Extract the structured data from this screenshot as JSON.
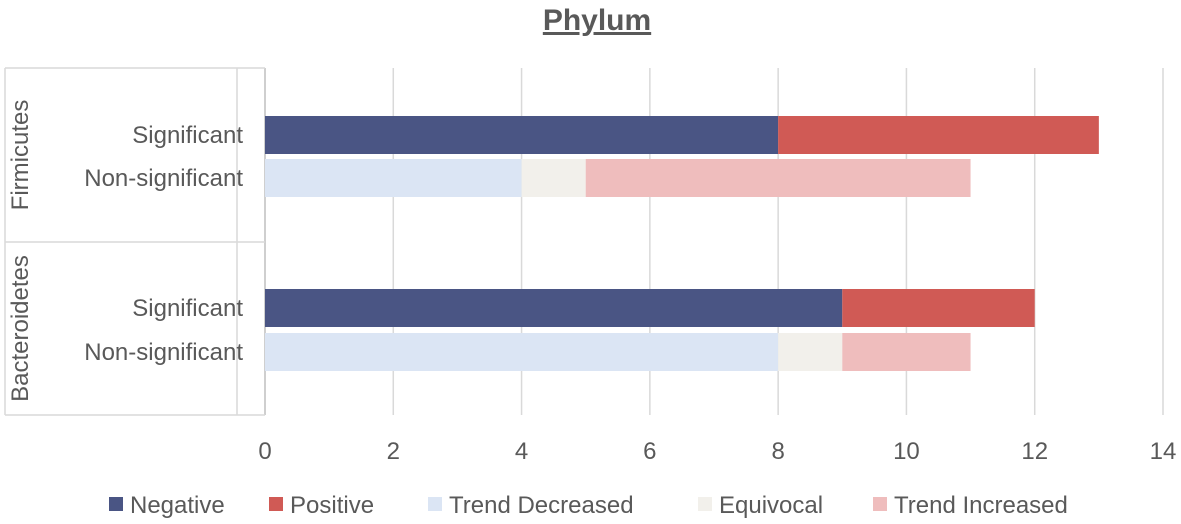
{
  "chart_data": {
    "type": "bar",
    "orientation": "horizontal",
    "stacked": true,
    "title": "Phylum",
    "xlim": [
      0,
      14
    ],
    "x_ticks": [
      "0",
      "2",
      "4",
      "6",
      "8",
      "10",
      "12",
      "14"
    ],
    "grid": "vertical",
    "legend_position": "bottom",
    "groups": [
      {
        "name": "Firmicutes",
        "rows": [
          {
            "label": "Significant",
            "values": {
              "Negative": 8,
              "Positive": 5
            }
          },
          {
            "label": "Non-significant",
            "values": {
              "Trend Decreased": 4,
              "Equivocal": 1,
              "Trend Increased": 6
            }
          }
        ]
      },
      {
        "name": "Bacteroidetes",
        "rows": [
          {
            "label": "Significant",
            "values": {
              "Negative": 9,
              "Positive": 3
            }
          },
          {
            "label": "Non-significant",
            "values": {
              "Trend Decreased": 8,
              "Equivocal": 1,
              "Trend Increased": 2
            }
          }
        ]
      }
    ],
    "series": [
      {
        "name": "Negative",
        "color": "#4a5584"
      },
      {
        "name": "Positive",
        "color": "#d05a55"
      },
      {
        "name": "Trend Decreased",
        "color": "#dbe5f4"
      },
      {
        "name": "Equivocal",
        "color": "#f2f0eb"
      },
      {
        "name": "Trend Increased",
        "color": "#efbdbd"
      }
    ]
  }
}
